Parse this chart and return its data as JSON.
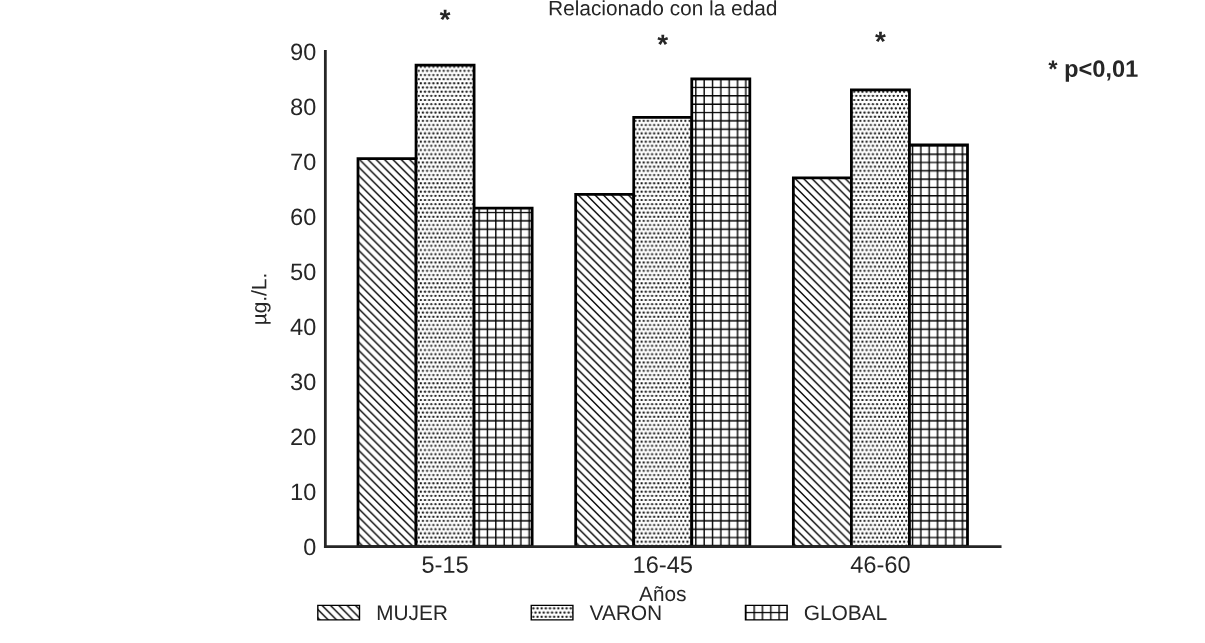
{
  "chart_data": {
    "type": "bar",
    "title": "Relacionado con la edad",
    "xlabel": "Años",
    "ylabel": "µg./L.",
    "categories": [
      "5-15",
      "16-45",
      "46-60"
    ],
    "series": [
      {
        "name": "MUJER",
        "color": "#000000",
        "values": [
          70.5,
          64,
          67
        ]
      },
      {
        "name": "VARON",
        "color": "#000000",
        "values": [
          87.5,
          78,
          83
        ]
      },
      {
        "name": "GLOBAL",
        "color": "#000000",
        "values": [
          61.5,
          85,
          73
        ]
      }
    ],
    "ylim": [
      0,
      90
    ],
    "yticks": [
      0,
      10,
      20,
      30,
      40,
      50,
      60,
      70,
      80,
      90
    ],
    "annotations": [
      "*",
      "*",
      "*",
      "* p<0,01"
    ],
    "legend": "bottom",
    "grid": false
  }
}
